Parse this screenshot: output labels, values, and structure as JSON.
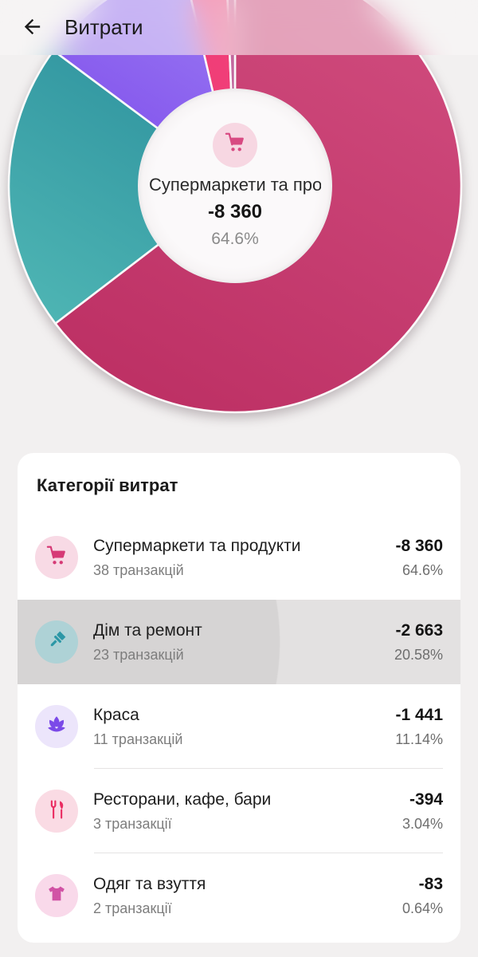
{
  "header": {
    "title": "Витрати"
  },
  "chart_data": {
    "type": "donut",
    "title": "",
    "legend_position": "none",
    "center": {
      "icon": "cart",
      "icon_color": "#d84a82",
      "icon_bg": "#f7d7e2",
      "label": "Супермаркети та продукти",
      "amount": "-8 360",
      "percent": "64.6%"
    },
    "slices": [
      {
        "label": "Супермаркети та продукти",
        "value": 64.6,
        "colors": [
          "#d04c7e",
          "#bd3064"
        ]
      },
      {
        "label": "Дім та ремонт",
        "value": 20.58,
        "colors": [
          "#2e929e",
          "#4db4b3"
        ]
      },
      {
        "label": "Краса",
        "value": 11.14,
        "colors": [
          "#9a7af2",
          "#7e4cec"
        ]
      },
      {
        "label": "Ресторани, кафе, бари",
        "value": 3.04,
        "colors": [
          "#f2417a",
          "#ee3a74"
        ]
      },
      {
        "label": "Одяг та взуття",
        "value": 0.64,
        "colors": [
          "#c2689e",
          "#c2689e"
        ]
      }
    ]
  },
  "categories": {
    "title": "Категорії витрат",
    "rows": [
      {
        "icon": "cart",
        "icon_bg": "#f8dae5",
        "icon_color": "#d63a76",
        "name": "Супермаркети та продукти",
        "transactions": "38 транзакцій",
        "amount": "-8 360",
        "percent": "64.6%",
        "selected": false
      },
      {
        "icon": "brush",
        "icon_bg": "#aed2d6",
        "icon_color": "#2b97a6",
        "name": "Дім та ремонт",
        "transactions": "23 транзакцій",
        "amount": "-2 663",
        "percent": "20.58%",
        "selected": true
      },
      {
        "icon": "lotus",
        "icon_bg": "#ece5fb",
        "icon_color": "#7b4ae8",
        "name": "Краса",
        "transactions": "11 транзакцій",
        "amount": "-1 441",
        "percent": "11.14%",
        "selected": false
      },
      {
        "icon": "cutlery",
        "icon_bg": "#fadbe4",
        "icon_color": "#ea2d62",
        "name": "Ресторани, кафе, бари",
        "transactions": "3 транзакції",
        "amount": "-394",
        "percent": "3.04%",
        "selected": false
      },
      {
        "icon": "tshirt",
        "icon_bg": "#f9d9ea",
        "icon_color": "#d153a5",
        "name": "Одяг та взуття",
        "transactions": "2 транзакції",
        "amount": "-83",
        "percent": "0.64%",
        "selected": false
      }
    ]
  }
}
